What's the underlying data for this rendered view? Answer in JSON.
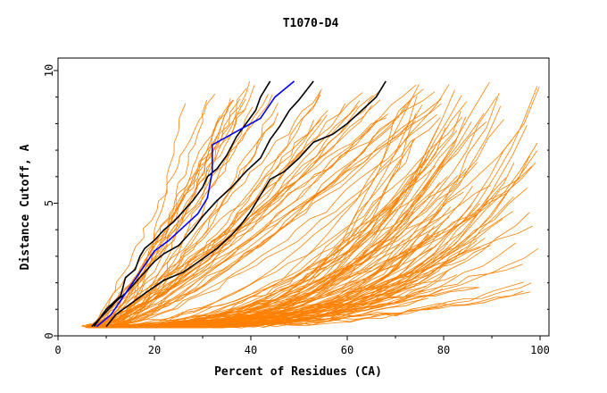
{
  "chart_data": {
    "type": "line",
    "title": "T1070-D4",
    "xlabel": "Percent of Residues (CA)",
    "ylabel": "Distance Cutoff, A",
    "xlim": [
      0,
      100
    ],
    "ylim": [
      0,
      10
    ],
    "x_ticks": [
      0,
      20,
      40,
      60,
      80,
      100
    ],
    "y_ticks": [
      0,
      5,
      10
    ],
    "grid": false,
    "legend": "none",
    "colors": {
      "bulk": "#ff8000",
      "highlight_black": "#000000",
      "highlight_blue": "#0000ff"
    },
    "series": [
      {
        "color": "#000000",
        "points": [
          [
            7.5,
            0.35
          ],
          [
            10,
            1.0
          ],
          [
            13,
            1.5
          ],
          [
            14,
            2.2
          ],
          [
            16,
            2.5
          ],
          [
            17,
            3.0
          ],
          [
            18,
            3.3
          ],
          [
            20,
            3.6
          ],
          [
            22,
            4.0
          ],
          [
            24,
            4.3
          ],
          [
            26,
            4.7
          ],
          [
            28,
            5.1
          ],
          [
            30,
            5.6
          ],
          [
            31,
            6.0
          ],
          [
            33,
            6.3
          ],
          [
            35,
            6.8
          ],
          [
            37,
            7.5
          ],
          [
            39,
            8.0
          ],
          [
            41,
            8.5
          ],
          [
            42,
            9.0
          ],
          [
            44,
            9.6
          ]
        ]
      },
      {
        "color": "#000000",
        "points": [
          [
            7,
            0.35
          ],
          [
            10,
            0.9
          ],
          [
            12,
            1.3
          ],
          [
            14,
            1.6
          ],
          [
            16,
            2.0
          ],
          [
            18,
            2.4
          ],
          [
            20,
            2.8
          ],
          [
            22,
            3.1
          ],
          [
            25,
            3.4
          ],
          [
            28,
            4.0
          ],
          [
            30,
            4.5
          ],
          [
            33,
            5.1
          ],
          [
            36,
            5.6
          ],
          [
            39,
            6.2
          ],
          [
            42,
            6.7
          ],
          [
            44,
            7.4
          ],
          [
            46,
            7.9
          ],
          [
            48,
            8.5
          ],
          [
            50,
            8.9
          ],
          [
            53,
            9.6
          ]
        ]
      },
      {
        "color": "#000000",
        "points": [
          [
            10,
            0.35
          ],
          [
            12,
            0.8
          ],
          [
            15,
            1.2
          ],
          [
            18,
            1.6
          ],
          [
            22,
            2.1
          ],
          [
            26,
            2.4
          ],
          [
            30,
            2.9
          ],
          [
            33,
            3.3
          ],
          [
            36,
            3.8
          ],
          [
            38,
            4.2
          ],
          [
            40,
            4.7
          ],
          [
            42,
            5.3
          ],
          [
            44,
            5.9
          ],
          [
            47,
            6.2
          ],
          [
            50,
            6.7
          ],
          [
            53,
            7.3
          ],
          [
            57,
            7.6
          ],
          [
            60,
            8.0
          ],
          [
            63,
            8.5
          ],
          [
            66,
            9.0
          ],
          [
            68,
            9.6
          ]
        ]
      },
      {
        "color": "#0000ff",
        "points": [
          [
            8,
            0.35
          ],
          [
            11,
            0.8
          ],
          [
            14,
            1.6
          ],
          [
            17,
            2.4
          ],
          [
            20,
            3.2
          ],
          [
            23,
            3.6
          ],
          [
            26,
            4.1
          ],
          [
            29,
            4.6
          ],
          [
            31,
            5.2
          ],
          [
            32,
            6.2
          ],
          [
            32,
            7.2
          ],
          [
            35,
            7.5
          ],
          [
            38,
            7.8
          ],
          [
            42,
            8.2
          ],
          [
            45,
            9.0
          ],
          [
            49,
            9.6
          ]
        ]
      }
    ]
  }
}
